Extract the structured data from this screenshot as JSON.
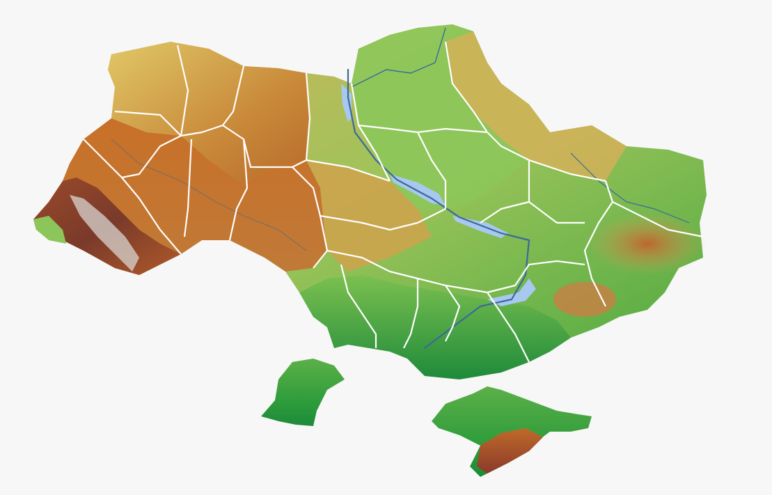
{
  "map": {
    "type": "relief-map",
    "colors": {
      "background": "#f7f7f7",
      "lowland_green": "#2e9a3a",
      "plain_light_green": "#8cc85a",
      "upland_yellow": "#d8c060",
      "hill_orange": "#c87a2a",
      "high_brown": "#a8501c",
      "mountain_dark": "#7a3a2a",
      "peak_white": "#e8e8e8",
      "water": "#a8c8f0",
      "river": "#3a6a9a",
      "border": "#ffffff"
    },
    "legend": []
  }
}
